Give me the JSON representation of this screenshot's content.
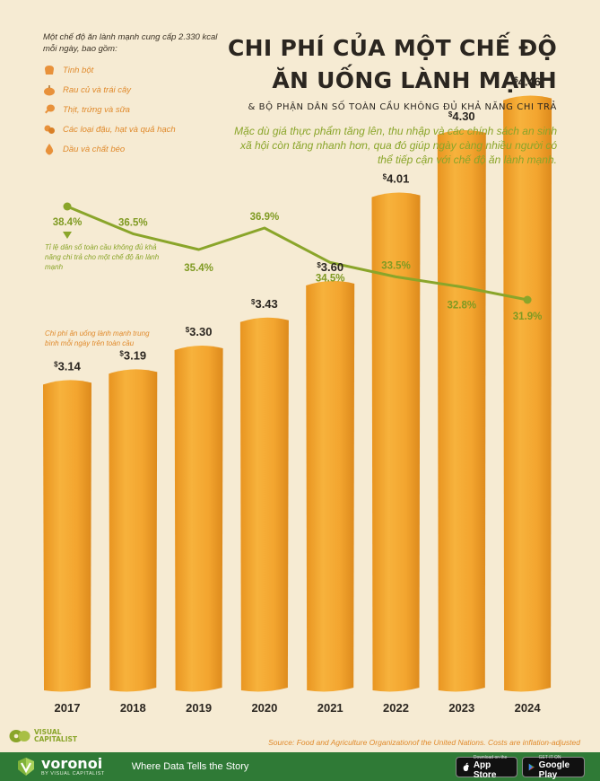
{
  "legend": {
    "intro": "Một chế độ ăn lành mạnh cung cấp 2.330 kcal mỗi ngày, bao gồm:",
    "items": [
      {
        "label": "Tinh bột",
        "icon": "bread-icon"
      },
      {
        "label": "Rau củ và trái cây",
        "icon": "pumpkin-icon"
      },
      {
        "label": "Thịt, trứng và sữa",
        "icon": "drumstick-icon"
      },
      {
        "label": "Các loại đậu, hạt và quả hạch",
        "icon": "nuts-icon"
      },
      {
        "label": "Dầu và chất béo",
        "icon": "oil-drop-icon"
      }
    ]
  },
  "title_line1": "CHI PHÍ CỦA MỘT CHẾ ĐỘ",
  "title_line2": "ĂN UỐNG LÀNH MẠNH",
  "subtitle": "& BỘ PHẬN DÂN SỐ TOÀN CẦU KHÔNG ĐỦ KHẢ NĂNG CHI TRẢ",
  "description": "Mặc dù giá thực phẩm tăng lên, thu nhập và các chính sách an sinh xã hội còn tăng nhanh hơn, qua đó giúp ngày càng nhiều người có thể tiếp cận với chế độ ăn lành mạnh.",
  "line_note": "Tỉ lệ dân số toàn cầu không đủ khả năng chi trả cho một chế độ ăn lành mạnh",
  "bar_note": "Chi phí ăn uống lành mạnh trung bình mỗi ngày trên toàn cầu",
  "source": "Source: Food and Agriculture Organizationof the United Nations. Costs are inflation-adjusted",
  "logo_line1": "VISUAL",
  "logo_line2": "CAPITALIST",
  "footer": {
    "brand": "voronoi",
    "brand_sub": "BY VISUAL CAPITALIST",
    "tagline": "Where Data Tells the Story",
    "appstore_small": "Download on the",
    "appstore_big": "App Store",
    "gplay_small": "GET IT ON",
    "gplay_big": "Google Play"
  },
  "colors": {
    "background": "#f6ebd3",
    "bar": "#f0a22b",
    "line": "#8aa52a",
    "title": "#2b2620",
    "footer": "#2f7a36"
  },
  "chart_data": {
    "type": "bar",
    "categories": [
      "2017",
      "2018",
      "2019",
      "2020",
      "2021",
      "2022",
      "2023",
      "2024"
    ],
    "series": [
      {
        "values": [
          3.14,
          3.19,
          3.3,
          3.43,
          3.6,
          4.01,
          4.3,
          4.46
        ],
        "labels": [
          "3.14",
          "3.19",
          "3.30",
          "3.43",
          "3.60",
          "4.01",
          "4.30",
          "4.46"
        ]
      },
      {
        "type": "line",
        "values": [
          38.4,
          36.5,
          35.4,
          36.9,
          34.5,
          33.5,
          32.8,
          31.9
        ],
        "labels": [
          "38.4%",
          "36.5%",
          "35.4%",
          "36.9%",
          "34.5%",
          "33.5%",
          "32.8%",
          "31.9%"
        ]
      }
    ],
    "currency_symbol": "$",
    "grid": false,
    "legend": "top-left"
  }
}
